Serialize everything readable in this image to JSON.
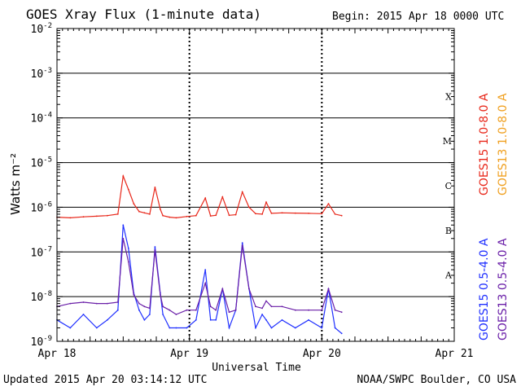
{
  "header": {
    "title": "GOES Xray Flux (1-minute data)",
    "begin": "Begin:  2015 Apr 18 0000 UTC"
  },
  "footer": {
    "updated": "Updated 2015 Apr 20 03:14:12 UTC",
    "credit": "NOAA/SWPC Boulder, CO USA"
  },
  "colors": {
    "goes15_long": "#e8271a",
    "goes13_long": "#f0a020",
    "goes15_short": "#1f2fff",
    "goes13_short": "#6a1fa8"
  },
  "chart_data": {
    "type": "line",
    "title": "GOES Xray Flux (1-minute data)",
    "xlabel": "Universal Time",
    "ylabel": "Watts m⁻²",
    "yscale": "log",
    "ylim": [
      1e-09,
      0.01
    ],
    "xlim_days": [
      0,
      3
    ],
    "x_tick_labels": [
      "Apr 18",
      "Apr 19",
      "Apr 20",
      "Apr 21"
    ],
    "y_tick_labels": [
      {
        "base": "10",
        "exp": "-2"
      },
      {
        "base": "10",
        "exp": "-3"
      },
      {
        "base": "10",
        "exp": "-4"
      },
      {
        "base": "10",
        "exp": "-5"
      },
      {
        "base": "10",
        "exp": "-6"
      },
      {
        "base": "10",
        "exp": "-7"
      },
      {
        "base": "10",
        "exp": "-8"
      },
      {
        "base": "10",
        "exp": "-9"
      }
    ],
    "flare_classes": [
      "X",
      "M",
      "C",
      "B",
      "A"
    ],
    "legend": [
      {
        "name": "GOES15 1.0-8.0 A",
        "color": "#e8271a"
      },
      {
        "name": "GOES13 1.0-8.0 A",
        "color": "#f0a020"
      },
      {
        "name": "GOES15 0.5-4.0 A",
        "color": "#1f2fff"
      },
      {
        "name": "GOES13 0.5-4.0 A",
        "color": "#6a1fa8"
      }
    ],
    "series": [
      {
        "name": "GOES15 1.0-8.0 A",
        "color": "#e8271a",
        "x": [
          0.0,
          0.1,
          0.2,
          0.3,
          0.38,
          0.46,
          0.5,
          0.54,
          0.58,
          0.62,
          0.66,
          0.7,
          0.74,
          0.78,
          0.8,
          0.85,
          0.9,
          0.98,
          1.05,
          1.12,
          1.16,
          1.2,
          1.25,
          1.3,
          1.35,
          1.4,
          1.45,
          1.5,
          1.55,
          1.58,
          1.62,
          1.7,
          1.8,
          1.9,
          2.0,
          2.05,
          2.1,
          2.15
        ],
        "values": [
          6e-07,
          5.8e-07,
          6.1e-07,
          6.3e-07,
          6.5e-07,
          7e-07,
          5e-06,
          2.5e-06,
          1.2e-06,
          8e-07,
          7.5e-07,
          7e-07,
          2.8e-06,
          9e-07,
          6.5e-07,
          6e-07,
          5.8e-07,
          6.2e-07,
          6.5e-07,
          1.6e-06,
          6.4e-07,
          6.6e-07,
          1.7e-06,
          6.6e-07,
          6.8e-07,
          2.2e-06,
          1e-06,
          7.2e-07,
          7e-07,
          1.3e-06,
          7.3e-07,
          7.5e-07,
          7.4e-07,
          7.3e-07,
          7.2e-07,
          1.2e-06,
          7e-07,
          6.5e-07
        ]
      },
      {
        "name": "GOES15 0.5-4.0 A",
        "color": "#1f2fff",
        "x": [
          0.0,
          0.1,
          0.2,
          0.3,
          0.38,
          0.46,
          0.5,
          0.54,
          0.58,
          0.62,
          0.66,
          0.7,
          0.74,
          0.78,
          0.8,
          0.85,
          0.9,
          0.98,
          1.05,
          1.12,
          1.16,
          1.2,
          1.25,
          1.3,
          1.35,
          1.4,
          1.45,
          1.5,
          1.55,
          1.58,
          1.62,
          1.7,
          1.8,
          1.9,
          2.0,
          2.05,
          2.1,
          2.15
        ],
        "values": [
          3e-09,
          2e-09,
          4e-09,
          2e-09,
          3e-09,
          5e-09,
          4e-07,
          1.2e-07,
          1.2e-08,
          5e-09,
          3e-09,
          4e-09,
          1.3e-07,
          1.2e-08,
          4e-09,
          2e-09,
          2e-09,
          2e-09,
          3e-09,
          4e-08,
          3e-09,
          3e-09,
          1.5e-08,
          2e-09,
          5e-09,
          1.6e-07,
          1.5e-08,
          2e-09,
          4e-09,
          3e-09,
          2e-09,
          3e-09,
          2e-09,
          3e-09,
          2e-09,
          1.5e-08,
          2e-09,
          1.5e-09
        ]
      },
      {
        "name": "GOES13 0.5-4.0 A",
        "color": "#6a1fa8",
        "x": [
          0.0,
          0.1,
          0.2,
          0.3,
          0.38,
          0.46,
          0.5,
          0.54,
          0.58,
          0.62,
          0.66,
          0.7,
          0.74,
          0.78,
          0.8,
          0.85,
          0.9,
          0.98,
          1.05,
          1.12,
          1.16,
          1.2,
          1.25,
          1.3,
          1.35,
          1.4,
          1.45,
          1.5,
          1.55,
          1.58,
          1.62,
          1.7,
          1.8,
          1.9,
          2.0,
          2.05,
          2.1,
          2.15
        ],
        "values": [
          6e-09,
          7e-09,
          7.5e-09,
          7e-09,
          7e-09,
          7.5e-09,
          2e-07,
          6e-08,
          1.1e-08,
          7e-09,
          6e-09,
          5.5e-09,
          1.1e-07,
          1.1e-08,
          6e-09,
          5e-09,
          4e-09,
          5e-09,
          5e-09,
          2e-08,
          6e-09,
          5e-09,
          1.5e-08,
          4.5e-09,
          5e-09,
          1.4e-07,
          1.5e-08,
          6e-09,
          5.5e-09,
          8e-09,
          6e-09,
          6e-09,
          5e-09,
          5e-09,
          5e-09,
          1.5e-08,
          5e-09,
          4.5e-09
        ]
      }
    ]
  }
}
